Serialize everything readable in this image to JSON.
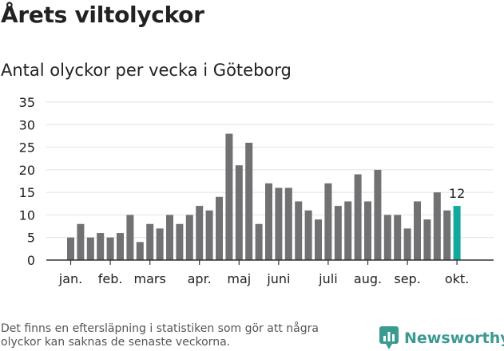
{
  "header": {
    "title": "Årets viltolyckor",
    "subtitle": "Antal olyckor per vecka i Göteborg"
  },
  "footer": {
    "note": "Det finns en eftersläpning i statistiken som gör att några olyckor kan saknas de senaste veckorna.",
    "brand": "Newsworthy"
  },
  "colors": {
    "bar": "#717073",
    "highlight": "#13a89e",
    "brand": "#3b9a92",
    "grid": "#e2e2e2",
    "text": "#222222"
  },
  "icons": {
    "logo": "newsworthy-chart-icon"
  },
  "chart_data": {
    "type": "bar",
    "title": "Antal olyckor per vecka i Göteborg",
    "xlabel": "",
    "ylabel": "",
    "ylim": [
      0,
      35
    ],
    "yticks": [
      0,
      5,
      10,
      15,
      20,
      25,
      30,
      35
    ],
    "grid": true,
    "values": [
      5,
      8,
      5,
      6,
      5,
      6,
      10,
      4,
      8,
      7,
      10,
      8,
      10,
      12,
      11,
      14,
      28,
      21,
      26,
      8,
      17,
      16,
      16,
      13,
      11,
      9,
      17,
      12,
      13,
      19,
      13,
      20,
      10,
      10,
      7,
      13,
      9,
      15,
      11,
      12
    ],
    "month_labels": [
      {
        "label": "jan.",
        "bar": 0
      },
      {
        "label": "feb.",
        "bar": 4
      },
      {
        "label": "mars",
        "bar": 8
      },
      {
        "label": "apr.",
        "bar": 13
      },
      {
        "label": "maj",
        "bar": 17
      },
      {
        "label": "juni",
        "bar": 21
      },
      {
        "label": "juli",
        "bar": 26
      },
      {
        "label": "aug.",
        "bar": 30
      },
      {
        "label": "sep.",
        "bar": 34
      },
      {
        "label": "okt.",
        "bar": 39
      }
    ],
    "highlight": {
      "bar": 39,
      "label": "12"
    }
  }
}
